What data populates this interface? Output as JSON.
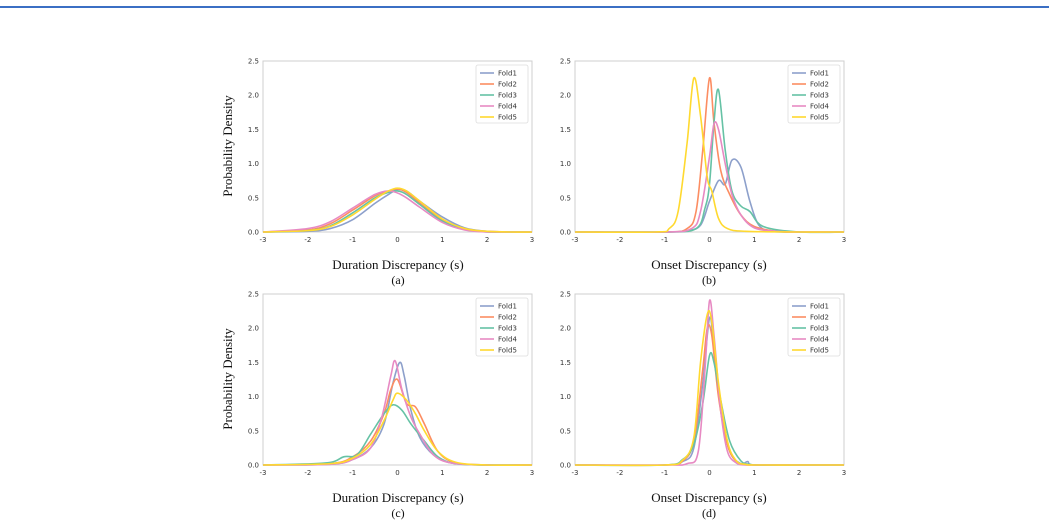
{
  "chart_data": [
    {
      "type": "line",
      "panel_caption": "(a)",
      "xlabel": "Duration Discrepancy (s)",
      "ylabel": "Probability Density",
      "xlim": [
        -3,
        3
      ],
      "ylim": [
        0,
        2.5
      ],
      "xticks": [
        "-3",
        "-2",
        "-1",
        "0",
        "1",
        "2",
        "3"
      ],
      "yticks": [
        "0.0",
        "0.5",
        "1.0",
        "1.5",
        "2.0",
        "2.5"
      ],
      "grid": false,
      "legend": "top-right",
      "series": [
        {
          "name": "Fold1",
          "color": "#8da0cb",
          "x": [
            -3,
            -2,
            -1.5,
            -1,
            -0.5,
            -0.2,
            0,
            0.2,
            0.5,
            1,
            1.5,
            2,
            2.5,
            3
          ],
          "y": [
            0,
            0.01,
            0.05,
            0.18,
            0.42,
            0.55,
            0.62,
            0.6,
            0.45,
            0.22,
            0.06,
            0.01,
            0,
            0
          ]
        },
        {
          "name": "Fold2",
          "color": "#fc8d62",
          "x": [
            -3,
            -2,
            -1.5,
            -1,
            -0.5,
            -0.2,
            0,
            0.2,
            0.5,
            1,
            1.5,
            2,
            2.5,
            3
          ],
          "y": [
            0,
            0.03,
            0.12,
            0.32,
            0.53,
            0.6,
            0.63,
            0.58,
            0.42,
            0.17,
            0.04,
            0.01,
            0,
            0
          ]
        },
        {
          "name": "Fold3",
          "color": "#66c2a5",
          "x": [
            -3,
            -2,
            -1.5,
            -1,
            -0.5,
            -0.2,
            0,
            0.2,
            0.5,
            1,
            1.5,
            2,
            2.5,
            3
          ],
          "y": [
            0,
            0.02,
            0.09,
            0.28,
            0.5,
            0.58,
            0.6,
            0.55,
            0.4,
            0.16,
            0.04,
            0,
            0,
            0
          ]
        },
        {
          "name": "Fold4",
          "color": "#e78ac3",
          "x": [
            -3,
            -2,
            -1.5,
            -1,
            -0.5,
            -0.2,
            0,
            0.2,
            0.5,
            1,
            1.5,
            2,
            2.5,
            3
          ],
          "y": [
            0,
            0.05,
            0.15,
            0.35,
            0.55,
            0.6,
            0.57,
            0.5,
            0.36,
            0.14,
            0.03,
            0,
            0,
            0
          ]
        },
        {
          "name": "Fold5",
          "color": "#ffd92f",
          "x": [
            -3,
            -2,
            -1.5,
            -1,
            -0.5,
            -0.2,
            0,
            0.2,
            0.5,
            1,
            1.5,
            2,
            2.5,
            3
          ],
          "y": [
            0,
            0.02,
            0.08,
            0.25,
            0.48,
            0.6,
            0.64,
            0.6,
            0.45,
            0.19,
            0.05,
            0.01,
            0,
            0
          ]
        }
      ]
    },
    {
      "type": "line",
      "panel_caption": "(b)",
      "xlabel": "Onset Discrepancy (s)",
      "ylabel": "",
      "xlim": [
        -3,
        3
      ],
      "ylim": [
        0,
        2.5
      ],
      "xticks": [
        "-3",
        "-2",
        "-1",
        "0",
        "1",
        "2",
        "3"
      ],
      "yticks": [
        "0.0",
        "0.5",
        "1.0",
        "1.5",
        "2.0",
        "2.5"
      ],
      "grid": false,
      "legend": "top-right",
      "series": [
        {
          "name": "Fold1",
          "color": "#8da0cb",
          "x": [
            -3,
            -1,
            -0.5,
            -0.2,
            0,
            0.2,
            0.35,
            0.5,
            0.7,
            0.9,
            1.1,
            1.4,
            2,
            3
          ],
          "y": [
            0,
            0,
            0.02,
            0.1,
            0.45,
            0.75,
            0.7,
            1.05,
            0.95,
            0.45,
            0.1,
            0.01,
            0,
            0
          ]
        },
        {
          "name": "Fold2",
          "color": "#fc8d62",
          "x": [
            -3,
            -1,
            -0.5,
            -0.3,
            -0.15,
            0,
            0.1,
            0.25,
            0.45,
            0.7,
            1,
            1.5,
            2,
            3
          ],
          "y": [
            0,
            0,
            0.05,
            0.3,
            1.2,
            2.25,
            1.6,
            0.9,
            0.55,
            0.25,
            0.08,
            0.01,
            0,
            0
          ]
        },
        {
          "name": "Fold3",
          "color": "#66c2a5",
          "x": [
            -3,
            -1,
            -0.3,
            -0.1,
            0,
            0.1,
            0.2,
            0.35,
            0.5,
            0.7,
            0.9,
            1.2,
            2,
            3
          ],
          "y": [
            0,
            0,
            0.05,
            0.35,
            0.7,
            1.6,
            2.08,
            1.2,
            0.6,
            0.38,
            0.3,
            0.08,
            0,
            0
          ]
        },
        {
          "name": "Fold4",
          "color": "#e78ac3",
          "x": [
            -3,
            -1,
            -0.4,
            -0.2,
            0,
            0.1,
            0.2,
            0.35,
            0.5,
            0.7,
            1,
            1.5,
            2,
            3
          ],
          "y": [
            0,
            0,
            0.05,
            0.3,
            1.1,
            1.58,
            1.5,
            1.0,
            0.55,
            0.25,
            0.06,
            0.01,
            0,
            0
          ]
        },
        {
          "name": "Fold5",
          "color": "#ffd92f",
          "x": [
            -3,
            -1.2,
            -0.9,
            -0.7,
            -0.5,
            -0.35,
            -0.2,
            -0.05,
            0.05,
            0.2,
            0.4,
            0.8,
            2,
            3
          ],
          "y": [
            0,
            0,
            0.05,
            0.3,
            1.3,
            2.25,
            1.7,
            0.8,
            0.6,
            0.2,
            0.05,
            0.01,
            0,
            0
          ]
        }
      ]
    },
    {
      "type": "line",
      "panel_caption": "(c)",
      "xlabel": "Duration Discrepancy (s)",
      "ylabel": "Probability Density",
      "xlim": [
        -3,
        3
      ],
      "ylim": [
        0,
        2.5
      ],
      "xticks": [
        "-3",
        "-2",
        "-1",
        "0",
        "1",
        "2",
        "3"
      ],
      "yticks": [
        "0.0",
        "0.5",
        "1.0",
        "1.5",
        "2.0",
        "2.5"
      ],
      "grid": false,
      "legend": "top-right",
      "series": [
        {
          "name": "Fold1",
          "color": "#8da0cb",
          "x": [
            -3,
            -1.5,
            -1,
            -0.6,
            -0.3,
            -0.1,
            0.05,
            0.15,
            0.3,
            0.5,
            0.8,
            1.2,
            2,
            3
          ],
          "y": [
            0,
            0.01,
            0.08,
            0.25,
            0.6,
            1.2,
            1.5,
            1.3,
            0.8,
            0.4,
            0.15,
            0.03,
            0,
            0
          ]
        },
        {
          "name": "Fold2",
          "color": "#fc8d62",
          "x": [
            -3,
            -1.5,
            -1,
            -0.6,
            -0.3,
            -0.15,
            0,
            0.2,
            0.4,
            0.6,
            0.9,
            1.3,
            2,
            3
          ],
          "y": [
            0,
            0.02,
            0.12,
            0.35,
            0.75,
            1.1,
            1.25,
            0.9,
            0.85,
            0.6,
            0.2,
            0.03,
            0,
            0
          ]
        },
        {
          "name": "Fold3",
          "color": "#66c2a5",
          "x": [
            -3,
            -1.6,
            -1.2,
            -0.9,
            -0.6,
            -0.3,
            -0.1,
            0.1,
            0.3,
            0.6,
            0.9,
            1.3,
            2,
            3
          ],
          "y": [
            0,
            0.03,
            0.12,
            0.15,
            0.45,
            0.75,
            0.88,
            0.8,
            0.6,
            0.35,
            0.12,
            0.02,
            0,
            0
          ]
        },
        {
          "name": "Fold4",
          "color": "#e78ac3",
          "x": [
            -3,
            -1.5,
            -1,
            -0.6,
            -0.35,
            -0.15,
            -0.05,
            0.1,
            0.3,
            0.5,
            0.8,
            1.2,
            2,
            3
          ],
          "y": [
            0,
            0.01,
            0.08,
            0.25,
            0.7,
            1.3,
            1.52,
            1.1,
            0.7,
            0.45,
            0.15,
            0.03,
            0,
            0
          ]
        },
        {
          "name": "Fold5",
          "color": "#ffd92f",
          "x": [
            -3,
            -1.5,
            -1,
            -0.6,
            -0.3,
            -0.1,
            0,
            0.2,
            0.4,
            0.6,
            0.9,
            1.3,
            2,
            3
          ],
          "y": [
            0,
            0.02,
            0.1,
            0.3,
            0.65,
            0.95,
            1.05,
            0.95,
            0.75,
            0.5,
            0.2,
            0.04,
            0,
            0
          ]
        }
      ]
    },
    {
      "type": "line",
      "panel_caption": "(d)",
      "xlabel": "Onset Discrepancy (s)",
      "ylabel": "",
      "xlim": [
        -3,
        3
      ],
      "ylim": [
        0,
        2.5
      ],
      "xticks": [
        "-3",
        "-2",
        "-1",
        "0",
        "1",
        "2",
        "3"
      ],
      "yticks": [
        "0.0",
        "0.5",
        "1.0",
        "1.5",
        "2.0",
        "2.5"
      ],
      "grid": false,
      "legend": "top-right",
      "series": [
        {
          "name": "Fold1",
          "color": "#8da0cb",
          "x": [
            -3,
            -1,
            -0.6,
            -0.35,
            -0.15,
            0,
            0.1,
            0.25,
            0.45,
            0.7,
            0.85,
            1,
            2,
            3
          ],
          "y": [
            0,
            0,
            0.05,
            0.25,
            1.2,
            2.15,
            1.7,
            0.8,
            0.2,
            0.02,
            0.05,
            0,
            0,
            0
          ]
        },
        {
          "name": "Fold2",
          "color": "#fc8d62",
          "x": [
            -3,
            -1,
            -0.6,
            -0.35,
            -0.15,
            -0.05,
            0.05,
            0.2,
            0.4,
            0.6,
            0.8,
            1,
            2,
            3
          ],
          "y": [
            0,
            0,
            0.06,
            0.35,
            1.4,
            2.0,
            1.9,
            1.0,
            0.3,
            0.05,
            0.01,
            0,
            0,
            0
          ]
        },
        {
          "name": "Fold3",
          "color": "#66c2a5",
          "x": [
            -3,
            -1,
            -0.6,
            -0.35,
            -0.15,
            0,
            0.1,
            0.25,
            0.45,
            0.7,
            0.9,
            1.1,
            2,
            3
          ],
          "y": [
            0,
            0,
            0.08,
            0.3,
            0.9,
            1.6,
            1.5,
            0.95,
            0.35,
            0.06,
            0.01,
            0,
            0,
            0
          ]
        },
        {
          "name": "Fold4",
          "color": "#e78ac3",
          "x": [
            -3,
            -1,
            -0.5,
            -0.25,
            -0.1,
            0,
            0.1,
            0.25,
            0.4,
            0.6,
            0.8,
            1,
            2,
            3
          ],
          "y": [
            0,
            0,
            0.02,
            0.2,
            1.4,
            2.4,
            1.9,
            0.8,
            0.2,
            0.03,
            0,
            0,
            0,
            0
          ]
        },
        {
          "name": "Fold5",
          "color": "#ffd92f",
          "x": [
            -3,
            -1,
            -0.6,
            -0.35,
            -0.2,
            -0.05,
            0.05,
            0.2,
            0.4,
            0.6,
            0.8,
            1,
            2,
            3
          ],
          "y": [
            0,
            0,
            0.07,
            0.4,
            1.5,
            2.2,
            2.1,
            1.2,
            0.35,
            0.06,
            0.01,
            0,
            0,
            0
          ]
        }
      ]
    }
  ]
}
